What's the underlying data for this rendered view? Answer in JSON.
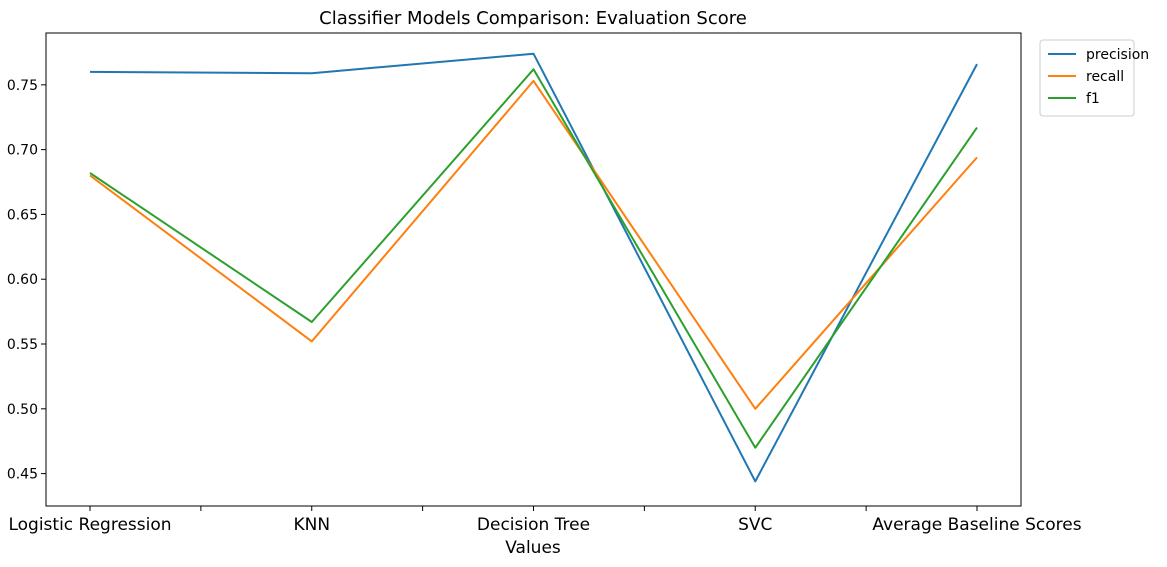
{
  "chart_data": {
    "type": "line",
    "title": "Classifier Models Comparison: Evaluation Score",
    "xlabel": "Values",
    "ylabel": "",
    "categories": [
      "Logistic Regression",
      "KNN",
      "Decision Tree",
      "SVC",
      "Average Baseline Scores"
    ],
    "ylim": [
      0.425,
      0.79
    ],
    "yticks": [
      "0.45",
      "0.50",
      "0.55",
      "0.60",
      "0.65",
      "0.70",
      "0.75"
    ],
    "grid": false,
    "legend_position": "outside top-right",
    "series": [
      {
        "name": "precision",
        "color": "#1f77b4",
        "values": [
          0.76,
          0.759,
          0.774,
          0.444,
          0.766
        ]
      },
      {
        "name": "recall",
        "color": "#ff7f0e",
        "values": [
          0.68,
          0.552,
          0.753,
          0.5,
          0.694
        ]
      },
      {
        "name": "f1",
        "color": "#2ca02c",
        "values": [
          0.682,
          0.567,
          0.762,
          0.47,
          0.717
        ]
      }
    ]
  }
}
